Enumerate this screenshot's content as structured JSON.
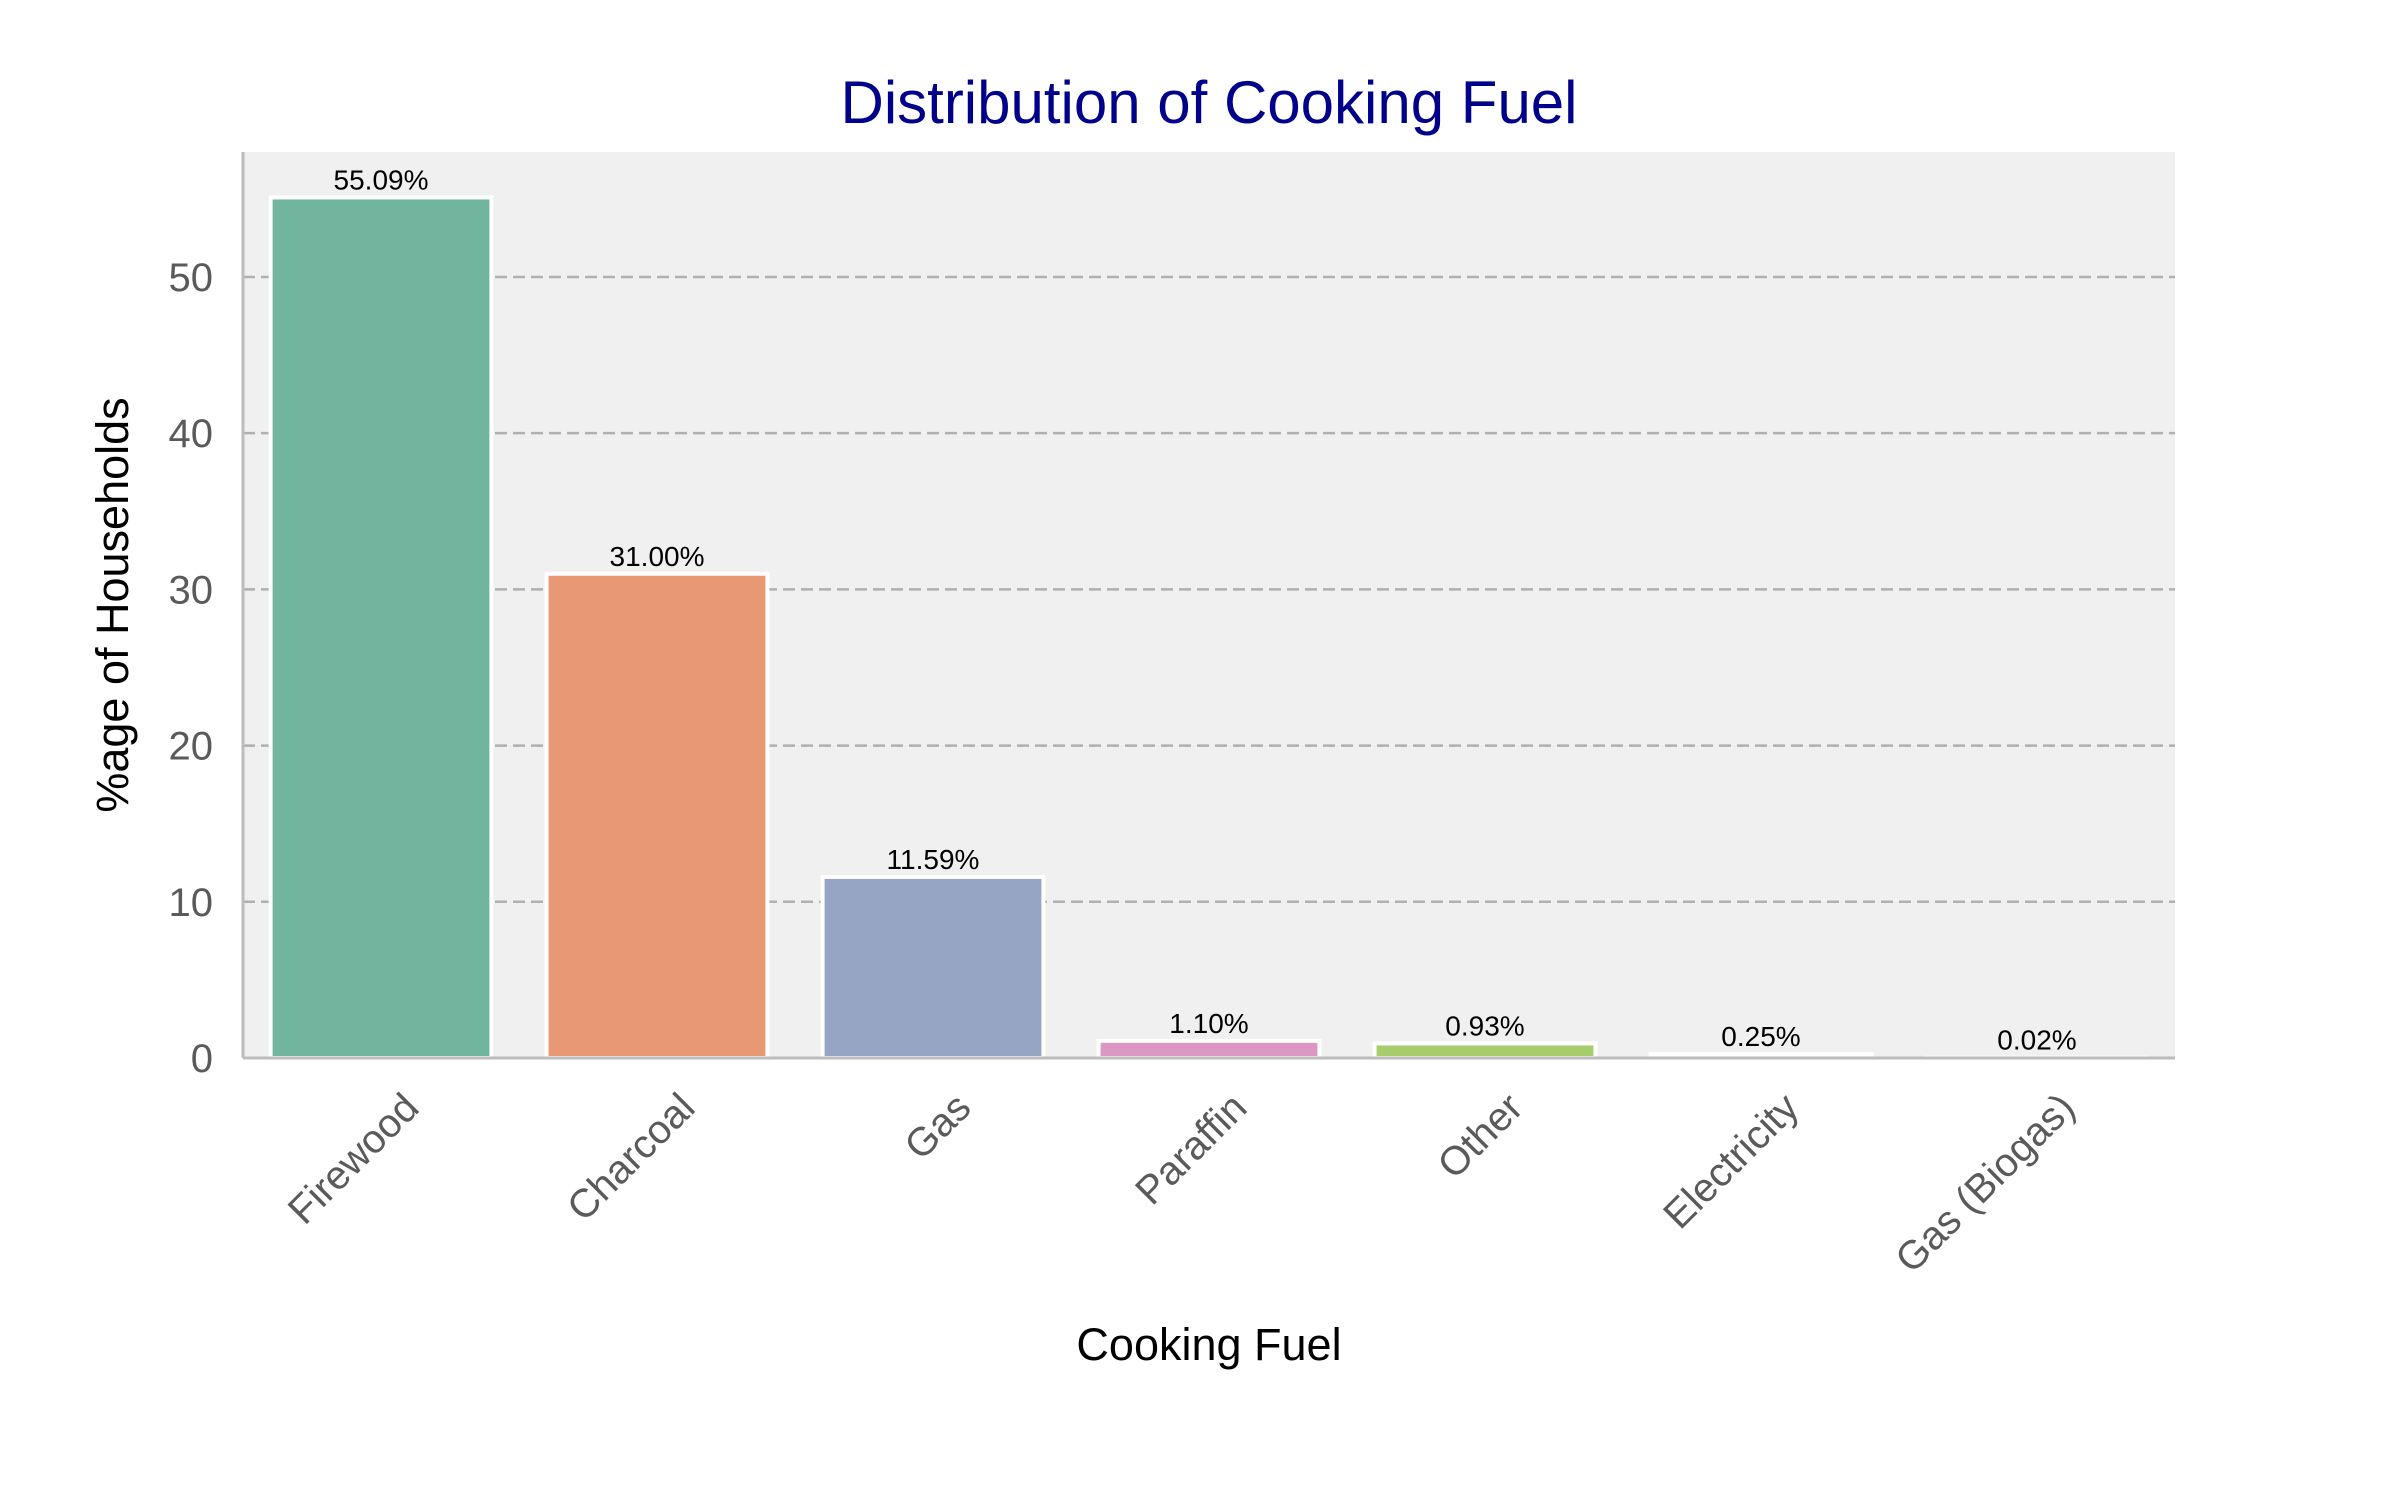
{
  "chart_data": {
    "type": "bar",
    "title": "Distribution of Cooking Fuel",
    "xlabel": "Cooking Fuel",
    "ylabel": "%age of Households",
    "categories": [
      "Firewood",
      "Charcoal",
      "Gas",
      "Paraffin",
      "Other",
      "Electricity",
      "Gas (Biogas)"
    ],
    "values": [
      55.09,
      31.0,
      11.59,
      1.1,
      0.93,
      0.25,
      0.02
    ],
    "value_labels": [
      "55.09%",
      "31.00%",
      "11.59%",
      "1.10%",
      "0.93%",
      "0.25%",
      "0.02%"
    ],
    "colors": [
      "#72b59f",
      "#e99874",
      "#96a5c4",
      "#dd97c4",
      "#a7cc6a",
      "#ffd92f",
      "#e5c494"
    ],
    "ylim": [
      0,
      58
    ],
    "yticks": [
      0,
      10,
      20,
      30,
      40,
      50
    ],
    "grid": true,
    "plot_background": "#f0f0f0"
  }
}
